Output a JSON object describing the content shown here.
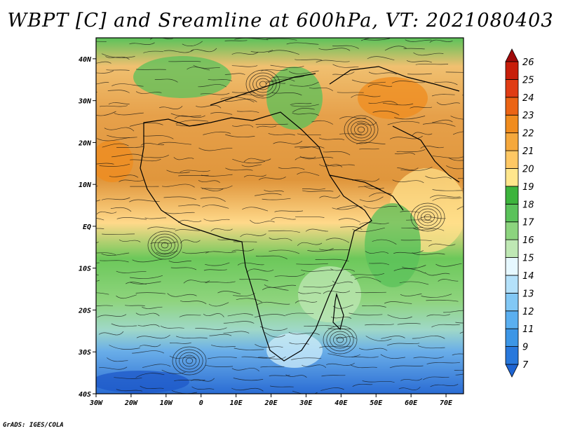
{
  "title": "WBPT [C] and Sreamline at 600hPa, VT: 2021080403",
  "credit": "GrADS: IGES/COLA",
  "map": {
    "lon_labels": [
      "30W",
      "20W",
      "10W",
      "0",
      "10E",
      "20E",
      "30E",
      "40E",
      "50E",
      "60E",
      "70E"
    ],
    "lat_labels": [
      "40N",
      "30N",
      "20N",
      "10N",
      "EQ",
      "10S",
      "20S",
      "30S",
      "40S"
    ],
    "lon_range": [
      -30,
      75
    ],
    "lat_range": [
      -40,
      45
    ]
  },
  "colorbar": {
    "labels": [
      "7",
      "9",
      "11",
      "12",
      "13",
      "14",
      "15",
      "16",
      "17",
      "18",
      "19",
      "20",
      "21",
      "22",
      "23",
      "24",
      "25",
      "26"
    ],
    "colors": [
      "#1e64d2",
      "#2878dc",
      "#3c96e6",
      "#5aaff0",
      "#82c8f5",
      "#b4e1fa",
      "#e6f8ff",
      "#bfe8b4",
      "#8cd47e",
      "#5ac25a",
      "#3cb43c",
      "#ffe68c",
      "#ffc864",
      "#f5a83c",
      "#f08c1e",
      "#eb6414",
      "#e03c14",
      "#c81e0a",
      "#a00a0a"
    ]
  }
}
